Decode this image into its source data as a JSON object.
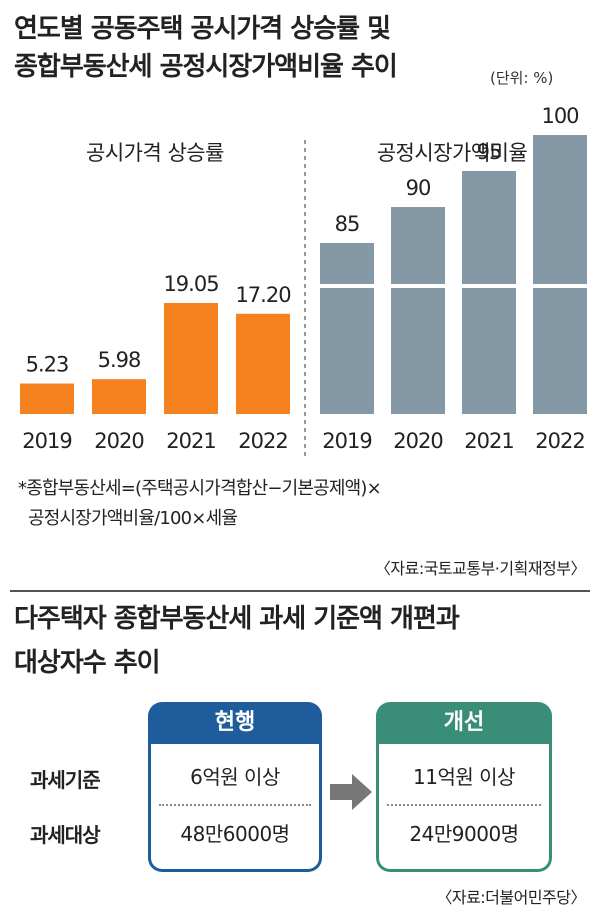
{
  "top_title": [
    "연도별 공동주택 공시가격 상승률 및",
    "종합부동산세 공정시장가액비율 추이"
  ],
  "unit_label": "(단위: %)",
  "chart_data": [
    {
      "type": "bar",
      "title": "공시가격 상승률",
      "categories": [
        "2019",
        "2020",
        "2021",
        "2022"
      ],
      "values": [
        5.23,
        5.98,
        19.05,
        17.2
      ],
      "value_labels": [
        "5.23",
        "5.98",
        "19.05",
        "17.20"
      ],
      "color": "#f5821f",
      "ylim": [
        0,
        30
      ]
    },
    {
      "type": "bar",
      "title": "공정시장가액비율",
      "categories": [
        "2019",
        "2020",
        "2021",
        "2022"
      ],
      "values": [
        85,
        90,
        95,
        100
      ],
      "value_labels": [
        "85",
        "90",
        "95",
        "100"
      ],
      "color": "#8598a5",
      "ylim": [
        0,
        100
      ],
      "axis_break": true
    }
  ],
  "note": [
    "*종합부동산세=(주택공시가격합산−기본공제액)×",
    "공정시장가액비율/100×세율"
  ],
  "source1": "〈자료:국토교통부·기획재정부〉",
  "bottom_title": [
    "다주택자 종합부동산세 과세 기준액 개편과",
    "대상자수 추이"
  ],
  "comparison": {
    "row_labels": [
      "과세기준",
      "과세대상"
    ],
    "current": {
      "header": "현행",
      "values": [
        "6억원 이상",
        "48만6000명"
      ],
      "color": "#1e5c9c"
    },
    "proposed": {
      "header": "개선",
      "values": [
        "11억원 이상",
        "24만9000명"
      ],
      "color": "#3a8e78"
    }
  },
  "source2": "〈자료:더불어민주당〉"
}
